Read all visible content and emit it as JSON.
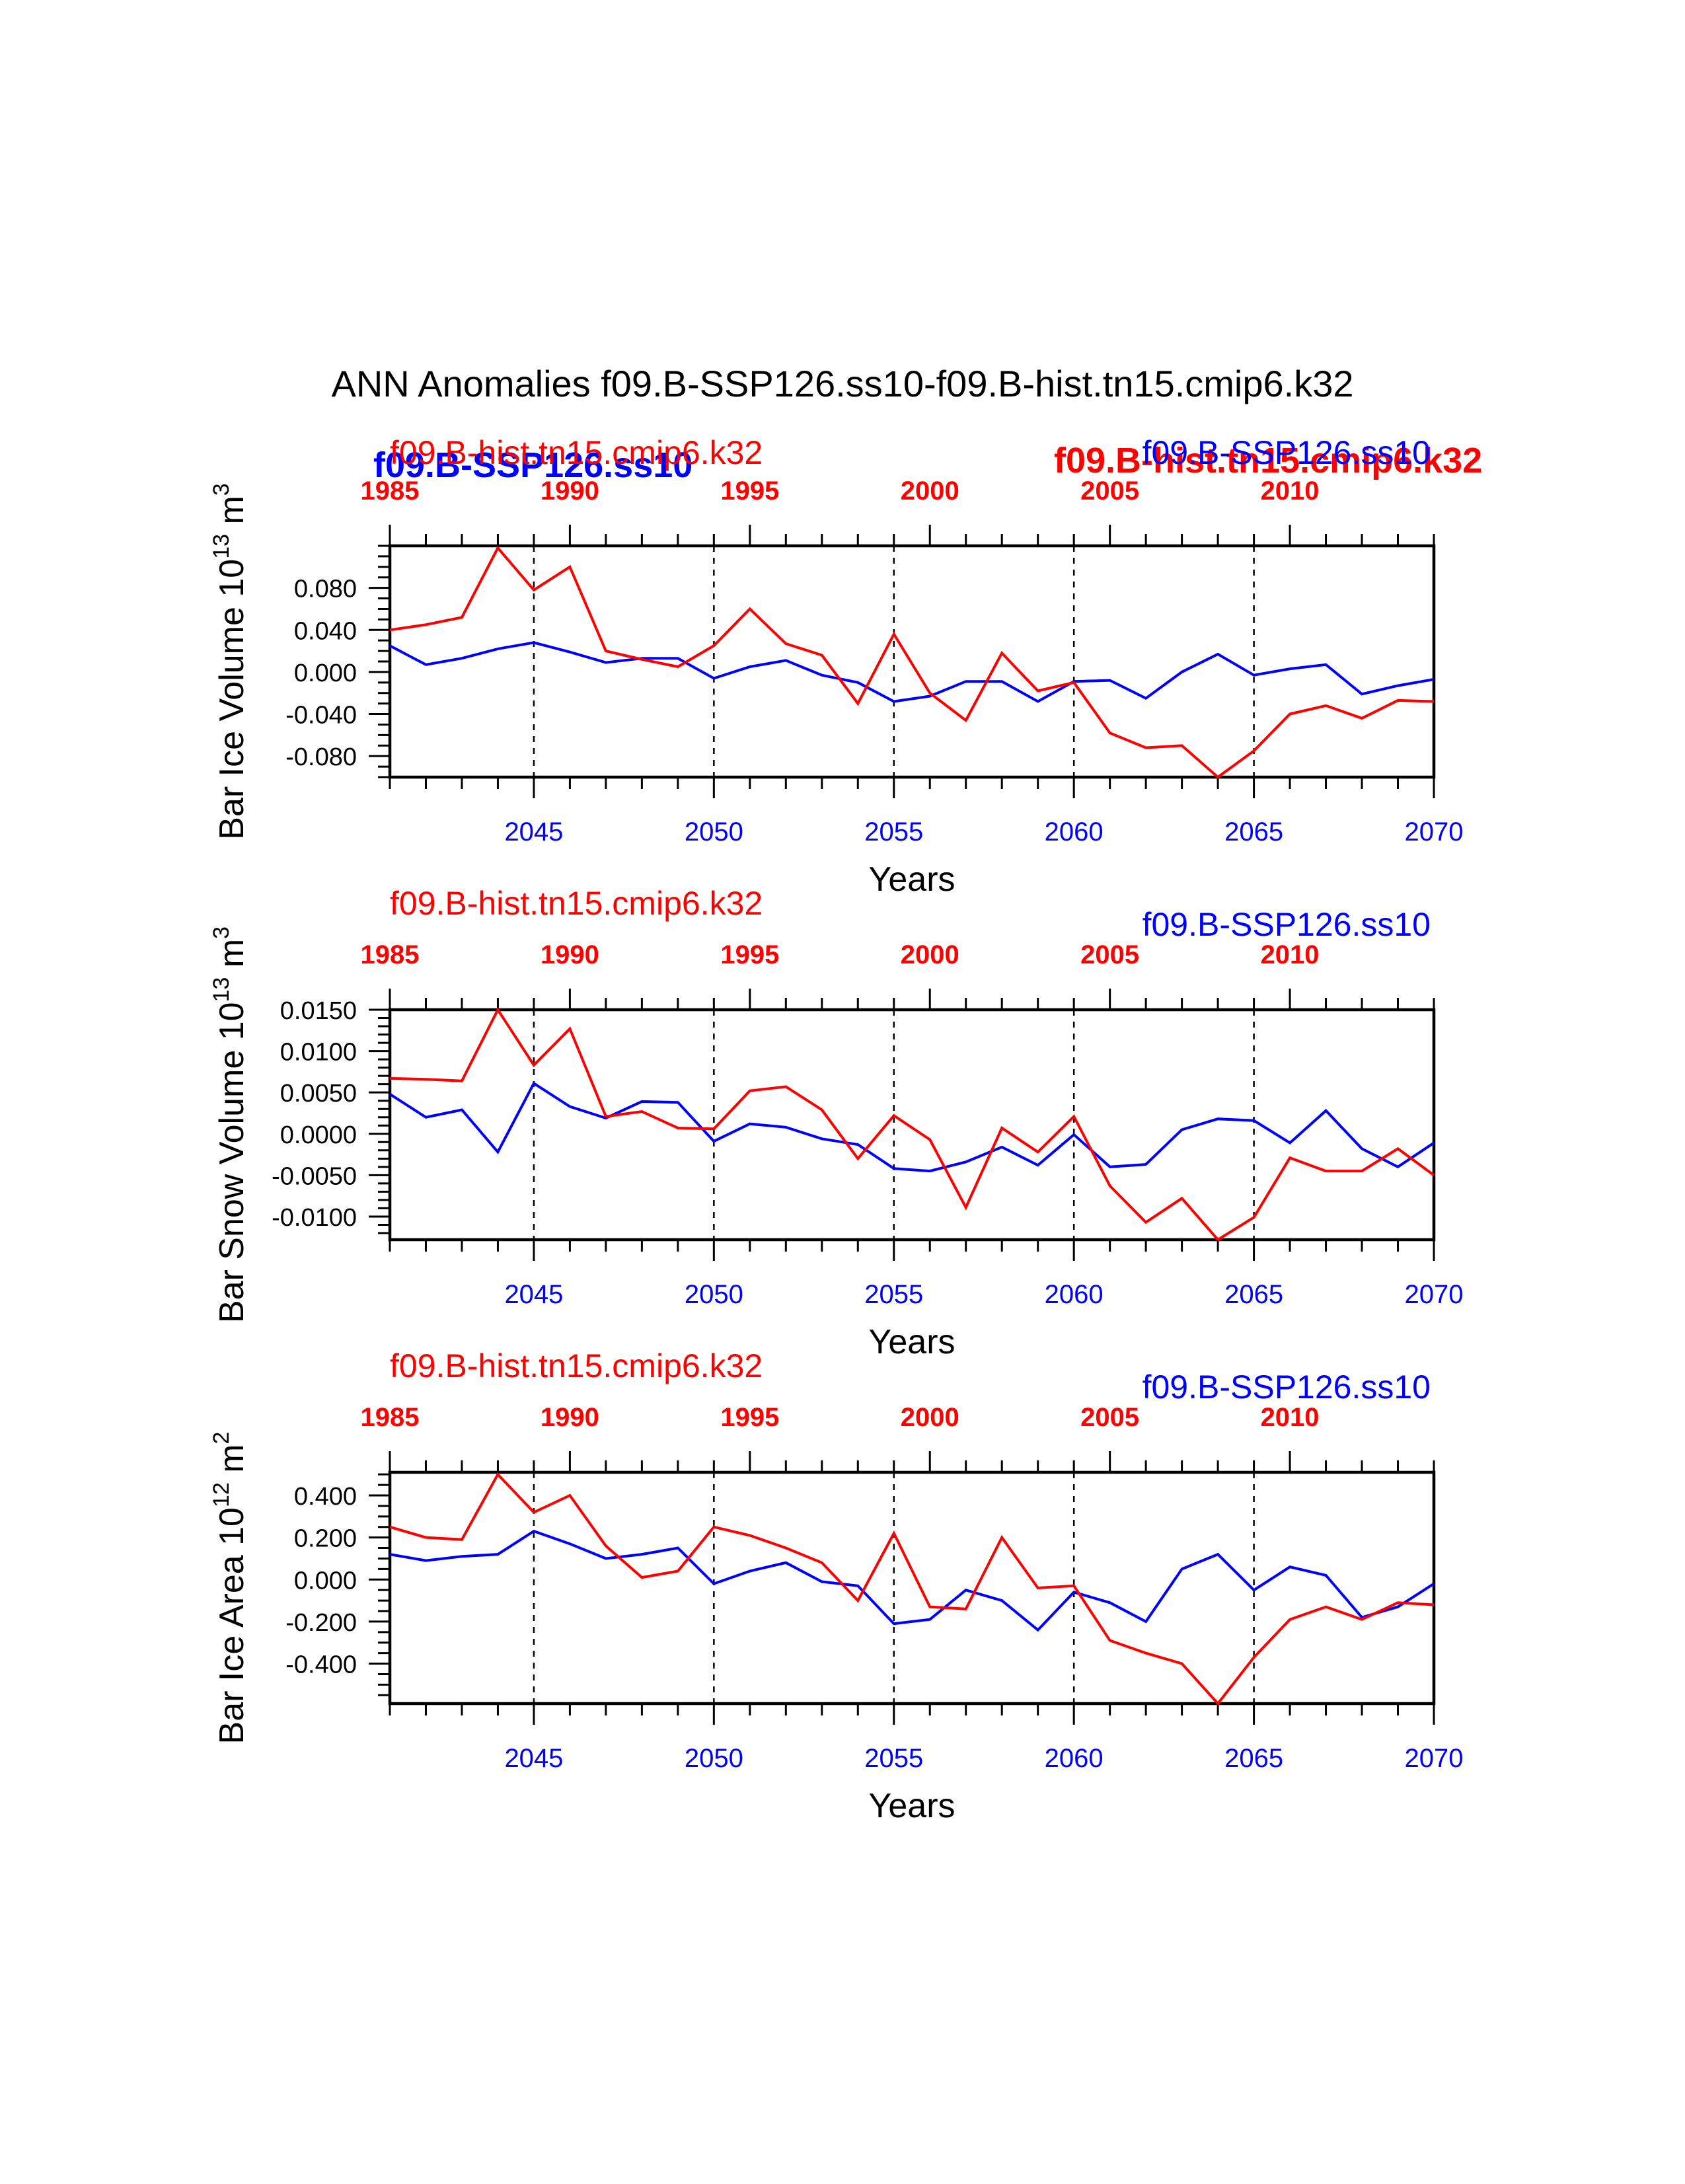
{
  "page_title": "ANN Anomalies f09.B-SSP126.ss10-f09.B-hist.tn15.cmip6.k32",
  "colors": {
    "ssp": "#0000ff",
    "hist": "#ff0000",
    "axis": "#000000"
  },
  "overlap_labels": {
    "ssp_bold": "f09.B-SSP126.ss10",
    "hist_bold": "f09.B-hist.tn15.cmip6.k32"
  },
  "chart_data": [
    {
      "type": "line",
      "ylabel": "Bar Ice Volume 10",
      "ylabel_sup": "13",
      "ylabel_unit": " m",
      "ylabel_unit_sup": "3",
      "xlabel": "Years",
      "hist_label": "f09.B-hist.tn15.cmip6.k32",
      "ssp_label": "f09.B-SSP126.ss10",
      "ylim": [
        -0.1,
        0.12
      ],
      "yticks": [
        "0.080",
        "0.040",
        "0.000",
        "-0.040",
        "-0.080"
      ],
      "ytick_values": [
        0.08,
        0.04,
        0.0,
        -0.04,
        -0.08
      ],
      "y_minor_step": 0.01,
      "x_bottom_ticks": [
        "2045",
        "2050",
        "2055",
        "2060",
        "2065",
        "2070"
      ],
      "x_bottom_values": [
        2045,
        2050,
        2055,
        2060,
        2065,
        2070
      ],
      "x_top_ticks": [
        "1985",
        "1990",
        "1995",
        "2000",
        "2005",
        "2010"
      ],
      "x_top_values": [
        1985,
        1990,
        1995,
        2000,
        2005,
        2010
      ],
      "xlim": [
        2041,
        2070
      ],
      "hist_years": [
        1985,
        2014
      ],
      "dashed_x": [
        2045,
        2050,
        2055,
        2060,
        2065
      ],
      "series": [
        {
          "name": "f09.B-SSP126.ss10",
          "x": [
            2041,
            2042,
            2043,
            2044,
            2045,
            2046,
            2047,
            2048,
            2049,
            2050,
            2051,
            2052,
            2053,
            2054,
            2055,
            2056,
            2057,
            2058,
            2059,
            2060,
            2061,
            2062,
            2063,
            2064,
            2065,
            2066,
            2067,
            2068,
            2069,
            2070
          ],
          "values": [
            0.025,
            0.007,
            0.013,
            0.022,
            0.028,
            0.019,
            0.009,
            0.013,
            0.013,
            -0.006,
            0.005,
            0.011,
            -0.003,
            -0.01,
            -0.028,
            -0.023,
            -0.009,
            -0.009,
            -0.028,
            -0.009,
            -0.008,
            -0.025,
            0.0,
            0.017,
            -0.003,
            0.003,
            0.007,
            -0.021,
            -0.013,
            -0.007
          ]
        },
        {
          "name": "f09.B-hist.tn15.cmip6.k32",
          "x": [
            1985,
            1986,
            1987,
            1988,
            1989,
            1990,
            1991,
            1992,
            1993,
            1994,
            1995,
            1996,
            1997,
            1998,
            1999,
            2000,
            2001,
            2002,
            2003,
            2004,
            2005,
            2006,
            2007,
            2008,
            2009,
            2010,
            2011,
            2012,
            2013,
            2014
          ],
          "values": [
            0.04,
            0.045,
            0.052,
            0.118,
            0.078,
            0.1,
            0.02,
            0.012,
            0.005,
            0.025,
            0.06,
            0.027,
            0.016,
            -0.03,
            0.036,
            -0.02,
            -0.046,
            0.018,
            -0.018,
            -0.01,
            -0.058,
            -0.072,
            -0.07,
            -0.1,
            -0.075,
            -0.04,
            -0.032,
            -0.044,
            -0.027,
            -0.028
          ]
        }
      ]
    },
    {
      "type": "line",
      "ylabel": "Bar Snow Volume 10",
      "ylabel_sup": "13",
      "ylabel_unit": " m",
      "ylabel_unit_sup": "3",
      "xlabel": "Years",
      "hist_label": "f09.B-hist.tn15.cmip6.k32",
      "ssp_label": "f09.B-SSP126.ss10",
      "ylim": [
        -0.0128,
        0.015
      ],
      "yticks": [
        "0.0150",
        "0.0100",
        "0.0050",
        "0.0000",
        "-0.0050",
        "-0.0100"
      ],
      "ytick_values": [
        0.015,
        0.01,
        0.005,
        0.0,
        -0.005,
        -0.01
      ],
      "y_minor_step": 0.001,
      "x_bottom_ticks": [
        "2045",
        "2050",
        "2055",
        "2060",
        "2065",
        "2070"
      ],
      "x_bottom_values": [
        2045,
        2050,
        2055,
        2060,
        2065,
        2070
      ],
      "x_top_ticks": [
        "1985",
        "1990",
        "1995",
        "2000",
        "2005",
        "2010"
      ],
      "x_top_values": [
        1985,
        1990,
        1995,
        2000,
        2005,
        2010
      ],
      "xlim": [
        2041,
        2070
      ],
      "hist_years": [
        1985,
        2014
      ],
      "dashed_x": [
        2045,
        2050,
        2055,
        2060,
        2065
      ],
      "series": [
        {
          "name": "f09.B-SSP126.ss10",
          "x": [
            2041,
            2042,
            2043,
            2044,
            2045,
            2046,
            2047,
            2048,
            2049,
            2050,
            2051,
            2052,
            2053,
            2054,
            2055,
            2056,
            2057,
            2058,
            2059,
            2060,
            2061,
            2062,
            2063,
            2064,
            2065,
            2066,
            2067,
            2068,
            2069,
            2070
          ],
          "values": [
            0.0048,
            0.002,
            0.0029,
            -0.0022,
            0.0061,
            0.0033,
            0.0019,
            0.0039,
            0.0038,
            -0.0009,
            0.0012,
            0.0008,
            -0.0006,
            -0.0013,
            -0.0042,
            -0.0045,
            -0.0034,
            -0.0016,
            -0.0038,
            -0.0001,
            -0.004,
            -0.0037,
            0.0005,
            0.0018,
            0.0016,
            -0.0011,
            0.0028,
            -0.0018,
            -0.004,
            -0.0011
          ]
        },
        {
          "name": "f09.B-hist.tn15.cmip6.k32",
          "x": [
            1985,
            1986,
            1987,
            1988,
            1989,
            1990,
            1991,
            1992,
            1993,
            1994,
            1995,
            1996,
            1997,
            1998,
            1999,
            2000,
            2001,
            2002,
            2003,
            2004,
            2005,
            2006,
            2007,
            2008,
            2009,
            2010,
            2011,
            2012,
            2013,
            2014
          ],
          "values": [
            0.0067,
            0.0066,
            0.0064,
            0.015,
            0.0083,
            0.0127,
            0.0021,
            0.0027,
            0.0007,
            0.0006,
            0.0052,
            0.0057,
            0.0029,
            -0.003,
            0.0022,
            -0.0007,
            -0.0089,
            0.0007,
            -0.0022,
            0.0021,
            -0.0063,
            -0.0107,
            -0.0078,
            -0.0128,
            -0.0101,
            -0.0029,
            -0.0045,
            -0.0045,
            -0.0018,
            -0.005
          ]
        }
      ]
    },
    {
      "type": "line",
      "ylabel": "Bar Ice Area 10",
      "ylabel_sup": "12",
      "ylabel_unit": " m",
      "ylabel_unit_sup": "2",
      "xlabel": "Years",
      "hist_label": "f09.B-hist.tn15.cmip6.k32",
      "ssp_label": "f09.B-SSP126.ss10",
      "ylim": [
        -0.59,
        0.51
      ],
      "yticks": [
        "0.400",
        "0.200",
        "0.000",
        "-0.200",
        "-0.400"
      ],
      "ytick_values": [
        0.4,
        0.2,
        0.0,
        -0.2,
        -0.4
      ],
      "y_minor_step": 0.05,
      "x_bottom_ticks": [
        "2045",
        "2050",
        "2055",
        "2060",
        "2065",
        "2070"
      ],
      "x_bottom_values": [
        2045,
        2050,
        2055,
        2060,
        2065,
        2070
      ],
      "x_top_ticks": [
        "1985",
        "1990",
        "1995",
        "2000",
        "2005",
        "2010"
      ],
      "x_top_values": [
        1985,
        1990,
        1995,
        2000,
        2005,
        2010
      ],
      "xlim": [
        2041,
        2070
      ],
      "hist_years": [
        1985,
        2014
      ],
      "dashed_x": [
        2045,
        2050,
        2055,
        2060,
        2065
      ],
      "series": [
        {
          "name": "f09.B-SSP126.ss10",
          "x": [
            2041,
            2042,
            2043,
            2044,
            2045,
            2046,
            2047,
            2048,
            2049,
            2050,
            2051,
            2052,
            2053,
            2054,
            2055,
            2056,
            2057,
            2058,
            2059,
            2060,
            2061,
            2062,
            2063,
            2064,
            2065,
            2066,
            2067,
            2068,
            2069,
            2070
          ],
          "values": [
            0.12,
            0.09,
            0.11,
            0.12,
            0.23,
            0.17,
            0.1,
            0.12,
            0.15,
            -0.02,
            0.04,
            0.08,
            -0.01,
            -0.03,
            -0.21,
            -0.19,
            -0.05,
            -0.1,
            -0.24,
            -0.06,
            -0.11,
            -0.2,
            0.05,
            0.12,
            -0.05,
            0.06,
            0.02,
            -0.18,
            -0.13,
            -0.02
          ]
        },
        {
          "name": "f09.B-hist.tn15.cmip6.k32",
          "x": [
            1985,
            1986,
            1987,
            1988,
            1989,
            1990,
            1991,
            1992,
            1993,
            1994,
            1995,
            1996,
            1997,
            1998,
            1999,
            2000,
            2001,
            2002,
            2003,
            2004,
            2005,
            2006,
            2007,
            2008,
            2009,
            2010,
            2011,
            2012,
            2013,
            2014
          ],
          "values": [
            0.25,
            0.2,
            0.19,
            0.5,
            0.32,
            0.4,
            0.16,
            0.01,
            0.04,
            0.25,
            0.21,
            0.15,
            0.08,
            -0.1,
            0.22,
            -0.13,
            -0.14,
            0.2,
            -0.04,
            -0.03,
            -0.29,
            -0.35,
            -0.4,
            -0.59,
            -0.37,
            -0.19,
            -0.13,
            -0.19,
            -0.11,
            -0.12
          ]
        }
      ]
    }
  ]
}
